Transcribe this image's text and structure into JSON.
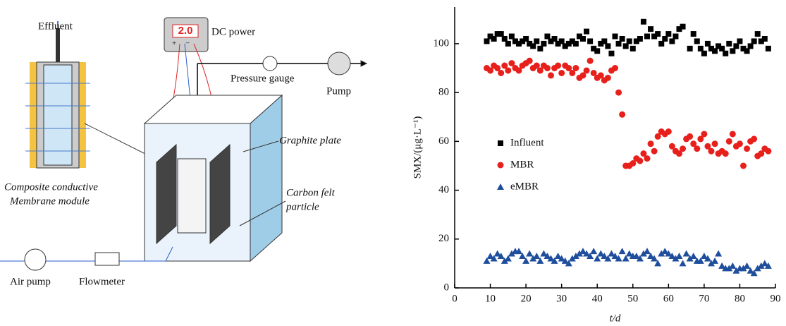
{
  "diagram": {
    "effluent": "Effluent",
    "display": "2.0",
    "dc_power": "DC power",
    "plus": "+",
    "minus": "−",
    "pressure_gauge": "Pressure gauge",
    "pump": "Pump",
    "graphite_plate": "Graphite plate",
    "carbon_felt": [
      "Carbon felt",
      "particle"
    ],
    "membrane": [
      "Composite conductive",
      "Membrane module"
    ],
    "air_pump": "Air pump",
    "flowmeter": "Flowmeter"
  },
  "chart_data": {
    "type": "scatter",
    "xlabel": "t/d",
    "ylabel": "SMX/(μg·L⁻¹)",
    "xlim": [
      0,
      90
    ],
    "xticks": [
      0,
      10,
      20,
      30,
      40,
      50,
      60,
      70,
      80,
      90
    ],
    "ylim": [
      0,
      115
    ],
    "yticks": [
      0,
      20,
      40,
      60,
      80,
      100
    ],
    "legend": "center-left",
    "series": [
      {
        "name": "Influent",
        "color": "#000000",
        "marker": "square",
        "x": [
          9,
          10,
          11,
          12,
          13,
          14,
          15,
          16,
          17,
          18,
          19,
          20,
          21,
          22,
          23,
          24,
          25,
          26,
          27,
          28,
          29,
          30,
          31,
          32,
          33,
          34,
          35,
          36,
          37,
          38,
          39,
          40,
          41,
          42,
          43,
          44,
          45,
          46,
          47,
          48,
          49,
          50,
          51,
          52,
          53,
          54,
          55,
          56,
          57,
          58,
          59,
          60,
          61,
          62,
          63,
          64,
          66,
          67,
          68,
          69,
          70,
          71,
          72,
          73,
          74,
          75,
          76,
          77,
          78,
          79,
          80,
          81,
          82,
          83,
          84,
          85,
          86,
          87,
          88
        ],
        "values": [
          101,
          103,
          102,
          104,
          104,
          102,
          100,
          103,
          101,
          100,
          101,
          102,
          100,
          99,
          101,
          98,
          100,
          103,
          101,
          102,
          100,
          101,
          99,
          100,
          101,
          100,
          103,
          102,
          105,
          101,
          98,
          97,
          100,
          101,
          99,
          96,
          103,
          100,
          102,
          99,
          101,
          98,
          101,
          102,
          109,
          103,
          106,
          103,
          104,
          100,
          102,
          104,
          101,
          103,
          106,
          107,
          98,
          104,
          101,
          98,
          96,
          100,
          98,
          97,
          99,
          98,
          96,
          100,
          97,
          99,
          101,
          98,
          97,
          99,
          101,
          104,
          101,
          102,
          98
        ]
      },
      {
        "name": "MBR",
        "color": "#e8201c",
        "marker": "circle",
        "x": [
          9,
          10,
          11,
          12,
          13,
          14,
          15,
          16,
          17,
          18,
          19,
          20,
          21,
          22,
          23,
          24,
          25,
          26,
          27,
          28,
          29,
          30,
          31,
          32,
          33,
          34,
          35,
          36,
          37,
          38,
          39,
          40,
          41,
          42,
          43,
          44,
          45,
          46,
          47,
          48,
          49,
          50,
          51,
          52,
          53,
          54,
          55,
          56,
          57,
          58,
          59,
          60,
          61,
          62,
          63,
          64,
          65,
          66,
          67,
          68,
          69,
          70,
          71,
          72,
          73,
          74,
          75,
          76,
          77,
          78,
          79,
          80,
          81,
          82,
          83,
          84,
          85,
          86,
          87,
          88
        ],
        "values": [
          90,
          89,
          91,
          90,
          88,
          91,
          89,
          92,
          90,
          89,
          91,
          92,
          93,
          90,
          91,
          89,
          91,
          90,
          87,
          90,
          91,
          88,
          91,
          90,
          88,
          90,
          86,
          87,
          89,
          93,
          88,
          86,
          87,
          85,
          86,
          89,
          90,
          80,
          71,
          50,
          50,
          51,
          53,
          52,
          55,
          53,
          59,
          56,
          62,
          64,
          63,
          64,
          58,
          56,
          55,
          57,
          61,
          62,
          59,
          57,
          61,
          63,
          58,
          56,
          59,
          55,
          56,
          55,
          60,
          63,
          58,
          59,
          50,
          57,
          60,
          61,
          54,
          55,
          57,
          56
        ]
      },
      {
        "name": "eMBR",
        "color": "#1f4e9c",
        "marker": "triangle",
        "x": [
          9,
          10,
          11,
          12,
          13,
          14,
          15,
          16,
          17,
          18,
          19,
          20,
          21,
          22,
          23,
          24,
          25,
          26,
          27,
          28,
          29,
          30,
          31,
          32,
          33,
          34,
          35,
          36,
          37,
          38,
          39,
          40,
          41,
          42,
          43,
          44,
          45,
          46,
          47,
          48,
          49,
          50,
          51,
          52,
          53,
          54,
          55,
          56,
          57,
          58,
          59,
          60,
          61,
          62,
          63,
          64,
          65,
          66,
          67,
          68,
          69,
          70,
          71,
          72,
          73,
          74,
          75,
          76,
          77,
          78,
          79,
          80,
          81,
          82,
          83,
          84,
          85,
          86,
          87,
          88
        ],
        "values": [
          11,
          13,
          12,
          14,
          13,
          11,
          12,
          14,
          15,
          15,
          13,
          11,
          14,
          12,
          13,
          11,
          14,
          13,
          12,
          11,
          13,
          12,
          11,
          10,
          12,
          13,
          14,
          15,
          14,
          13,
          15,
          12,
          14,
          13,
          12,
          14,
          13,
          12,
          15,
          12,
          14,
          13,
          13,
          12,
          14,
          15,
          13,
          12,
          10,
          14,
          15,
          14,
          13,
          12,
          13,
          10,
          14,
          12,
          13,
          11,
          11,
          13,
          12,
          10,
          11,
          14,
          9,
          8,
          8,
          9,
          7,
          8,
          8,
          9,
          7,
          6,
          8,
          9,
          10,
          9
        ]
      }
    ]
  }
}
